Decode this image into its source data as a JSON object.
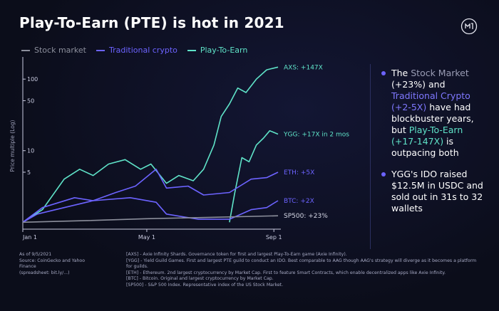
{
  "title": "Play-To-Earn (PTE) is hot in 2021",
  "colors": {
    "stock": "#8c8f9c",
    "crypto": "#6c63ff",
    "pte": "#5fe3c8",
    "accent": "#6c63ff"
  },
  "legend": [
    {
      "label": "Stock market",
      "color": "#8c8f9c"
    },
    {
      "label": "Traditional crypto",
      "color": "#6c63ff"
    },
    {
      "label": "Play-To-Earn",
      "color": "#5fe3c8"
    }
  ],
  "chart_data": {
    "type": "line",
    "ylabel": "Price multiple (Log)",
    "yscale": "log",
    "ylim": [
      0.8,
      170
    ],
    "yticks": [
      5,
      10,
      50,
      100
    ],
    "xticks": [
      "Jan 1",
      "May 1",
      "Sep 1"
    ],
    "xlim": [
      "2021-01-01",
      "2021-09-05"
    ],
    "series": [
      {
        "name": "AXS",
        "label": "AXS: +147X",
        "color": "#5fe3c8",
        "points": [
          [
            "2021-01-01",
            1
          ],
          [
            "2021-01-20",
            1.5
          ],
          [
            "2021-02-10",
            4
          ],
          [
            "2021-02-25",
            5.5
          ],
          [
            "2021-03-10",
            4.5
          ],
          [
            "2021-03-25",
            6.5
          ],
          [
            "2021-04-10",
            7.5
          ],
          [
            "2021-04-25",
            5.5
          ],
          [
            "2021-05-05",
            6.5
          ],
          [
            "2021-05-20",
            3.5
          ],
          [
            "2021-06-01",
            4.5
          ],
          [
            "2021-06-15",
            3.8
          ],
          [
            "2021-06-25",
            5.5
          ],
          [
            "2021-07-05",
            12
          ],
          [
            "2021-07-12",
            30
          ],
          [
            "2021-07-20",
            45
          ],
          [
            "2021-07-28",
            75
          ],
          [
            "2021-08-05",
            65
          ],
          [
            "2021-08-15",
            100
          ],
          [
            "2021-08-25",
            135
          ],
          [
            "2021-09-05",
            147
          ]
        ]
      },
      {
        "name": "YGG",
        "label": "YGG: +17X in 2 mos",
        "color": "#5fe3c8",
        "points": [
          [
            "2021-07-20",
            1
          ],
          [
            "2021-07-25",
            2.5
          ],
          [
            "2021-08-01",
            8
          ],
          [
            "2021-08-08",
            7
          ],
          [
            "2021-08-15",
            12
          ],
          [
            "2021-08-22",
            15
          ],
          [
            "2021-08-28",
            19
          ],
          [
            "2021-09-05",
            17
          ]
        ]
      },
      {
        "name": "ETH",
        "label": "ETH: +5X",
        "color": "#6c63ff",
        "points": [
          [
            "2021-01-01",
            1
          ],
          [
            "2021-01-20",
            1.6
          ],
          [
            "2021-02-20",
            2.2
          ],
          [
            "2021-03-10",
            2.0
          ],
          [
            "2021-04-01",
            2.6
          ],
          [
            "2021-04-20",
            3.2
          ],
          [
            "2021-05-10",
            5.5
          ],
          [
            "2021-05-20",
            3.0
          ],
          [
            "2021-06-10",
            3.2
          ],
          [
            "2021-06-25",
            2.4
          ],
          [
            "2021-07-20",
            2.6
          ],
          [
            "2021-08-10",
            4.0
          ],
          [
            "2021-08-25",
            4.2
          ],
          [
            "2021-09-05",
            5
          ]
        ]
      },
      {
        "name": "BTC",
        "label": "BTC: +2X",
        "color": "#6c63ff",
        "points": [
          [
            "2021-01-01",
            1
          ],
          [
            "2021-01-15",
            1.3
          ],
          [
            "2021-02-10",
            1.6
          ],
          [
            "2021-03-10",
            2.0
          ],
          [
            "2021-04-15",
            2.2
          ],
          [
            "2021-05-10",
            1.9
          ],
          [
            "2021-05-20",
            1.3
          ],
          [
            "2021-06-20",
            1.1
          ],
          [
            "2021-07-20",
            1.1
          ],
          [
            "2021-08-10",
            1.5
          ],
          [
            "2021-08-25",
            1.6
          ],
          [
            "2021-09-05",
            2
          ]
        ]
      },
      {
        "name": "SP500",
        "label": "SP500: +23%",
        "color": "#8c8f9c",
        "points": [
          [
            "2021-01-01",
            1
          ],
          [
            "2021-03-01",
            1.05
          ],
          [
            "2021-05-01",
            1.12
          ],
          [
            "2021-07-01",
            1.17
          ],
          [
            "2021-09-05",
            1.23
          ]
        ]
      }
    ]
  },
  "bullets": {
    "b1": {
      "p1": "The ",
      "p2": "Stock Market",
      "p3": " (+23%) and ",
      "p4": "Traditional Crypto (+2-5X)",
      "p5": " have had blockbuster years, but ",
      "p6": "Play-To-Earn (+17-147X)",
      "p7": " is outpacing both"
    },
    "b2": "YGG's IDO raised $12.5M in USDC and sold out in 31s to 32 wallets"
  },
  "footer": {
    "left": [
      "As of 9/5/2021",
      "Source: CoinGecko and Yahoo Finance",
      "(spreadsheet: bit.ly/...)"
    ],
    "right": [
      "[AXS] - Axie Infinity Shards. Governance token for first and largest Play-To-Earn game (Axie Infinity).",
      "[YGG] - Yield Guild Games. First and largest PTE guild to conduct an IDO. Best comparable to AAG though AAG's strategy will diverge as it becomes a platform for guilds.",
      "[ETH] - Ethereum. 2nd largest cryptocurrency by Market Cap. First to feature Smart Contracts, which enable decentralized apps like Axie Infinity.",
      "[BTC] - Bitcoin. Original and largest cryptocurrency by Market Cap.",
      "[SP500] - S&P 500 Index. Representative index of the US Stock Market."
    ]
  }
}
